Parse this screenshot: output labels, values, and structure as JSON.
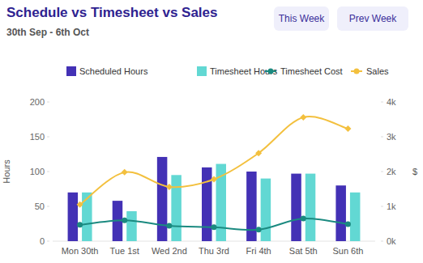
{
  "chart_data": {
    "type": "bar",
    "title": "Schedule vs Timesheet vs Sales",
    "subtitle": "30th Sep - 6th Oct",
    "categories": [
      "Mon 30th",
      "Tue 1st",
      "Wed 2nd",
      "Thu 3rd",
      "Fri 4th",
      "Sat 5th",
      "Sun 6th"
    ],
    "y_label": "Hours",
    "y2_label": "$",
    "ylim": [
      0,
      200
    ],
    "yticks": [
      0,
      50,
      100,
      150,
      200
    ],
    "y2lim": [
      0,
      4000
    ],
    "y2ticks": [
      {
        "value": 0,
        "label": "0k"
      },
      {
        "value": 1000,
        "label": "1k"
      },
      {
        "value": 2000,
        "label": "2k"
      },
      {
        "value": 3000,
        "label": "3k"
      },
      {
        "value": 4000,
        "label": "4k"
      }
    ],
    "legend": "top",
    "grid": false,
    "series": [
      {
        "name": "Scheduled Hours",
        "type": "bar",
        "color": "#4331b5",
        "values": [
          70,
          58,
          121,
          106,
          100,
          97,
          80
        ]
      },
      {
        "name": "Timesheet Hours",
        "type": "bar",
        "color": "#62d8d3",
        "values": [
          70,
          43,
          95,
          111,
          90,
          97,
          70
        ]
      },
      {
        "name": "Timesheet Cost",
        "type": "line",
        "axis": "y2",
        "color": "#1b8a80",
        "marker": "circle",
        "line_style": "smooth",
        "values": [
          470,
          600,
          440,
          400,
          330,
          650,
          490
        ]
      },
      {
        "name": "Sales",
        "type": "line",
        "axis": "y2",
        "color": "#f3c03e",
        "marker": "diamond",
        "line_style": "smooth",
        "values": [
          1050,
          1980,
          1560,
          1780,
          2530,
          3560,
          3230
        ]
      }
    ]
  },
  "controls": {
    "buttons": [
      "This Week",
      "Prev Week"
    ]
  }
}
